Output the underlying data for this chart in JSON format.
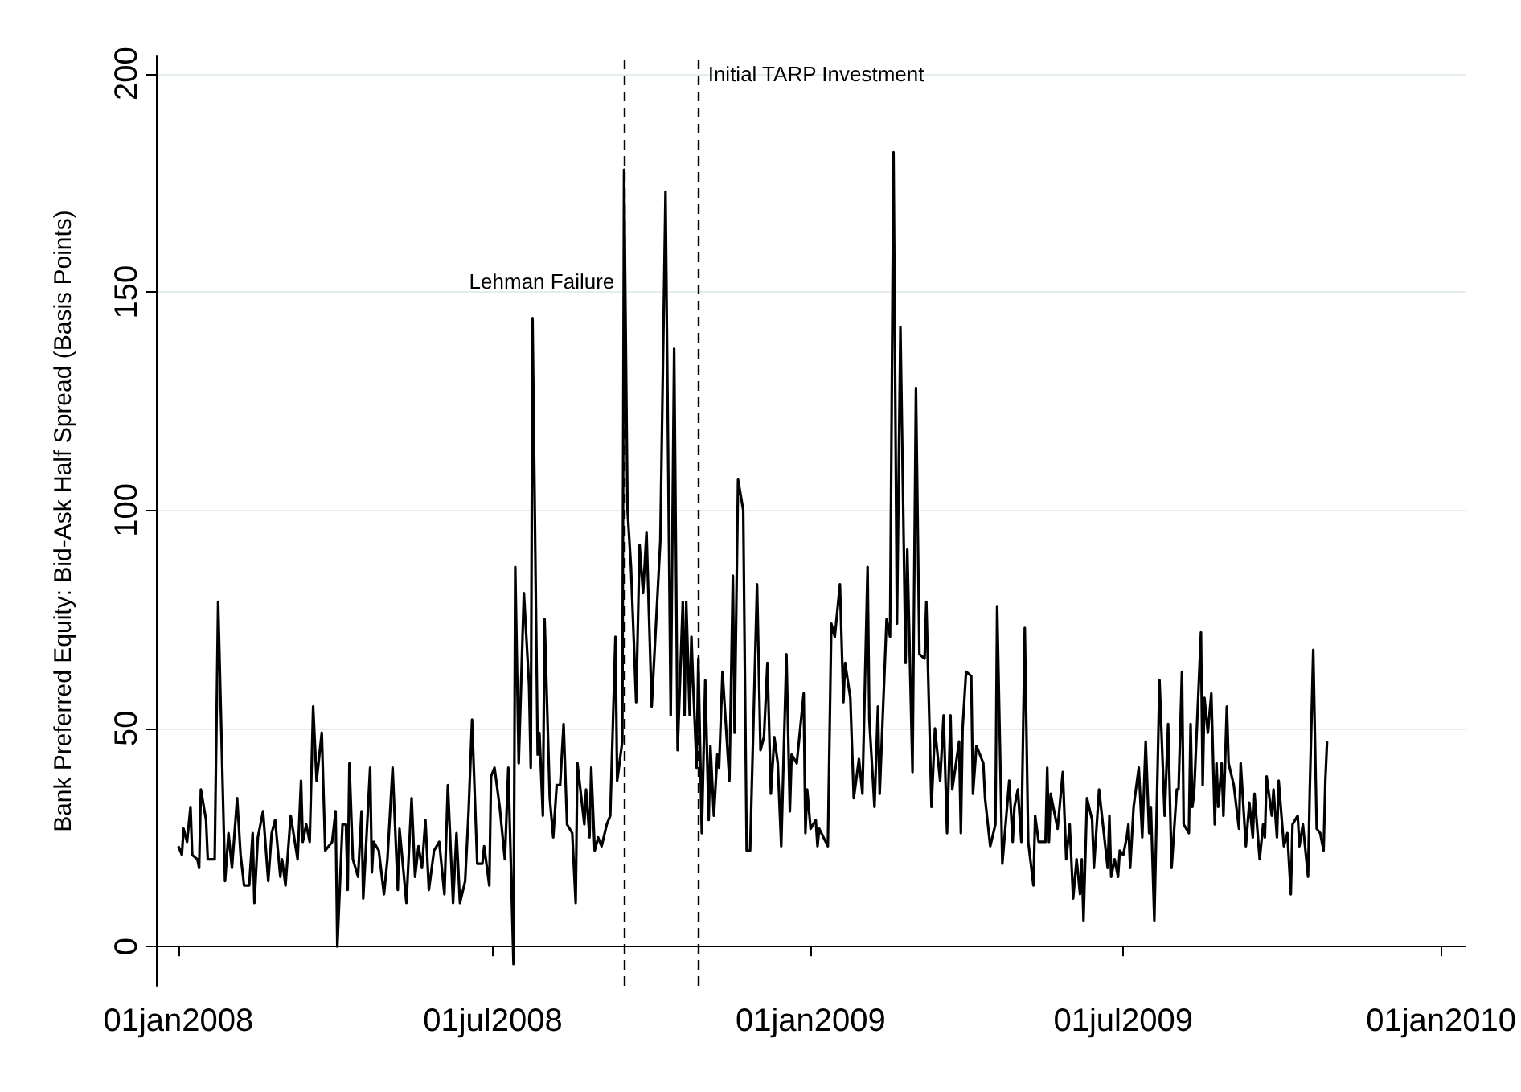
{
  "chart_data": {
    "type": "line",
    "ylabel": "Bank Preferred Equity: Bid-Ask Half Spread (Basis Points)",
    "xlim": [
      "2007-12-19",
      "2010-01-15"
    ],
    "xticks": [
      {
        "value": "2008-01-01",
        "label": "01jan2008"
      },
      {
        "value": "2008-07-01",
        "label": "01jul2008"
      },
      {
        "value": "2009-01-01",
        "label": "01jan2009"
      },
      {
        "value": "2009-07-01",
        "label": "01jul2009"
      },
      {
        "value": "2010-01-01",
        "label": "01jan2010"
      }
    ],
    "ylim": [
      -9,
      204
    ],
    "yticks": [
      0,
      50,
      100,
      150,
      200
    ],
    "grid": "y",
    "marker": "none",
    "line_style": "solid",
    "ref_lines": [
      {
        "axis": "x",
        "value": "2008-09-15",
        "color": "#000000",
        "line_style": "dashed"
      },
      {
        "axis": "x",
        "value": "2008-10-28",
        "color": "#000000",
        "line_style": "dashed"
      }
    ],
    "annotations": [
      {
        "text": "Lehman Failure",
        "x": "2008-09-15",
        "y": 150
      },
      {
        "text": "Initial TARP Investment",
        "x": "2008-10-28",
        "y": 200
      }
    ],
    "x": [
      "2008-01-01",
      "2008-01-03",
      "2008-01-04",
      "2008-01-06",
      "2008-01-08",
      "2008-01-09",
      "2008-01-12",
      "2008-01-13",
      "2008-01-14",
      "2008-01-17",
      "2008-01-18",
      "2008-01-22",
      "2008-01-24",
      "2008-01-28",
      "2008-01-30",
      "2008-02-01",
      "2008-02-04",
      "2008-02-06",
      "2008-02-08",
      "2008-02-11",
      "2008-02-13",
      "2008-02-14",
      "2008-02-16",
      "2008-02-19",
      "2008-02-22",
      "2008-02-24",
      "2008-02-26",
      "2008-02-29",
      "2008-03-01",
      "2008-03-03",
      "2008-03-06",
      "2008-03-10",
      "2008-03-12",
      "2008-03-13",
      "2008-03-15",
      "2008-03-17",
      "2008-03-19",
      "2008-03-21",
      "2008-03-24",
      "2008-03-26",
      "2008-03-30",
      "2008-04-01",
      "2008-04-02",
      "2008-04-05",
      "2008-04-07",
      "2008-04-08",
      "2008-04-09",
      "2008-04-11",
      "2008-04-14",
      "2008-04-16",
      "2008-04-17",
      "2008-04-21",
      "2008-04-22",
      "2008-04-23",
      "2008-04-26",
      "2008-04-29",
      "2008-05-01",
      "2008-05-04",
      "2008-05-07",
      "2008-05-08",
      "2008-05-12",
      "2008-05-15",
      "2008-05-17",
      "2008-05-19",
      "2008-05-21",
      "2008-05-23",
      "2008-05-25",
      "2008-05-28",
      "2008-05-31",
      "2008-06-03",
      "2008-06-05",
      "2008-06-08",
      "2008-06-10",
      "2008-06-12",
      "2008-06-15",
      "2008-06-17",
      "2008-06-19",
      "2008-06-22",
      "2008-06-25",
      "2008-06-26",
      "2008-06-29",
      "2008-06-30",
      "2008-07-02",
      "2008-07-05",
      "2008-07-08",
      "2008-07-10",
      "2008-07-13",
      "2008-07-14",
      "2008-07-16",
      "2008-07-19",
      "2008-07-22",
      "2008-07-23",
      "2008-07-24",
      "2008-07-27",
      "2008-07-28",
      "2008-07-30",
      "2008-07-31",
      "2008-08-03",
      "2008-08-05",
      "2008-08-07",
      "2008-08-09",
      "2008-08-11",
      "2008-08-13",
      "2008-08-16",
      "2008-08-18",
      "2008-08-19",
      "2008-08-23",
      "2008-08-24",
      "2008-08-26",
      "2008-08-27",
      "2008-08-29",
      "2008-08-31",
      "2008-09-02",
      "2008-09-05",
      "2008-09-07",
      "2008-09-10",
      "2008-09-11",
      "2008-09-14",
      "2008-09-15",
      "2008-09-17",
      "2008-09-19",
      "2008-09-22",
      "2008-09-24",
      "2008-09-26",
      "2008-09-28",
      "2008-10-01",
      "2008-10-06",
      "2008-10-09",
      "2008-10-12",
      "2008-10-14",
      "2008-10-16",
      "2008-10-19",
      "2008-10-20",
      "2008-10-21",
      "2008-10-23",
      "2008-10-24",
      "2008-10-25",
      "2008-10-27",
      "2008-10-28",
      "2008-10-30",
      "2008-11-01",
      "2008-11-03",
      "2008-11-04",
      "2008-11-06",
      "2008-11-08",
      "2008-11-09",
      "2008-11-11",
      "2008-11-15",
      "2008-11-17",
      "2008-11-18",
      "2008-11-20",
      "2008-11-23",
      "2008-11-25",
      "2008-11-27",
      "2008-12-01",
      "2008-12-03",
      "2008-12-05",
      "2008-12-07",
      "2008-12-09",
      "2008-12-11",
      "2008-12-13",
      "2008-12-15",
      "2008-12-18",
      "2008-12-20",
      "2008-12-21",
      "2008-12-24",
      "2008-12-28",
      "2008-12-29",
      "2008-12-30",
      "2009-01-01",
      "2009-01-04",
      "2009-01-05",
      "2009-01-06",
      "2009-01-11",
      "2009-01-13",
      "2009-01-15",
      "2009-01-18",
      "2009-01-20",
      "2009-01-21",
      "2009-01-24",
      "2009-01-26",
      "2009-01-29",
      "2009-01-31",
      "2009-02-03",
      "2009-02-04",
      "2009-02-07",
      "2009-02-09",
      "2009-02-10",
      "2009-02-14",
      "2009-02-16",
      "2009-02-18",
      "2009-02-20",
      "2009-02-22",
      "2009-02-25",
      "2009-02-26",
      "2009-03-01",
      "2009-03-03",
      "2009-03-05",
      "2009-03-08",
      "2009-03-09",
      "2009-03-12",
      "2009-03-14",
      "2009-03-17",
      "2009-03-19",
      "2009-03-21",
      "2009-03-23",
      "2009-03-24",
      "2009-03-28",
      "2009-03-29",
      "2009-03-30",
      "2009-04-01",
      "2009-04-04",
      "2009-04-05",
      "2009-04-07",
      "2009-04-11",
      "2009-04-12",
      "2009-04-15",
      "2009-04-18",
      "2009-04-19",
      "2009-04-22",
      "2009-04-26",
      "2009-04-28",
      "2009-04-29",
      "2009-05-01",
      "2009-05-03",
      "2009-05-05",
      "2009-05-07",
      "2009-05-10",
      "2009-05-11",
      "2009-05-13",
      "2009-05-17",
      "2009-05-18",
      "2009-05-19",
      "2009-05-20",
      "2009-05-24",
      "2009-05-27",
      "2009-05-29",
      "2009-05-31",
      "2009-06-02",
      "2009-06-04",
      "2009-06-06",
      "2009-06-07",
      "2009-06-08",
      "2009-06-10",
      "2009-06-13",
      "2009-06-14",
      "2009-06-17",
      "2009-06-22",
      "2009-06-23",
      "2009-06-24",
      "2009-06-26",
      "2009-06-28",
      "2009-06-29",
      "2009-07-01",
      "2009-07-03",
      "2009-07-04",
      "2009-07-05",
      "2009-07-07",
      "2009-07-10",
      "2009-07-12",
      "2009-07-14",
      "2009-07-16",
      "2009-07-17",
      "2009-07-19",
      "2009-07-22",
      "2009-07-25",
      "2009-07-27",
      "2009-07-29",
      "2009-08-01",
      "2009-08-02",
      "2009-08-04",
      "2009-08-05",
      "2009-08-08",
      "2009-08-09",
      "2009-08-10",
      "2009-08-11",
      "2009-08-15",
      "2009-08-16",
      "2009-08-17",
      "2009-08-19",
      "2009-08-21",
      "2009-08-23",
      "2009-08-24",
      "2009-08-25",
      "2009-08-27",
      "2009-08-28",
      "2009-08-30",
      "2009-08-31",
      "2009-09-03",
      "2009-09-06",
      "2009-09-07",
      "2009-09-10",
      "2009-09-12",
      "2009-09-14",
      "2009-09-15",
      "2009-09-18",
      "2009-09-20",
      "2009-09-21",
      "2009-09-22",
      "2009-09-25",
      "2009-09-26",
      "2009-09-28",
      "2009-09-29",
      "2009-10-02",
      "2009-10-04",
      "2009-10-06",
      "2009-10-07",
      "2009-10-10",
      "2009-10-11",
      "2009-10-13",
      "2009-10-16",
      "2009-10-17",
      "2009-10-19",
      "2009-10-21",
      "2009-10-23",
      "2009-10-25",
      "2009-10-26",
      "2009-10-27"
    ],
    "series": [
      {
        "color": "#000000",
        "values": [
          23,
          21,
          27,
          24,
          32,
          21,
          20,
          18,
          36,
          29,
          20,
          20,
          79,
          15,
          26,
          18,
          34,
          21,
          14,
          14,
          26,
          10,
          25,
          31,
          15,
          26,
          29,
          16,
          20,
          14,
          30,
          20,
          38,
          24,
          28,
          24,
          55,
          38,
          49,
          22,
          24,
          31,
          0,
          28,
          28,
          13,
          42,
          20,
          16,
          31,
          11,
          41,
          17,
          24,
          22,
          12,
          20,
          41,
          13,
          27,
          10,
          34,
          16,
          23,
          18,
          29,
          13,
          22,
          24,
          12,
          37,
          10,
          26,
          10,
          15,
          31,
          52,
          19,
          19,
          23,
          14,
          39,
          41,
          32,
          20,
          41,
          -4,
          87,
          42,
          81,
          60,
          41,
          144,
          44,
          49,
          30,
          75,
          34,
          25,
          37,
          37,
          51,
          28,
          26,
          10,
          42,
          28,
          36,
          25,
          41,
          22,
          25,
          23,
          28,
          30,
          71,
          38,
          47,
          178,
          100,
          87,
          56,
          92,
          81,
          95,
          55,
          93,
          173,
          53,
          137,
          45,
          79,
          53,
          79,
          53,
          71,
          60,
          41,
          66,
          26,
          61,
          29,
          46,
          30,
          44,
          41,
          63,
          38,
          85,
          49,
          107,
          100,
          22,
          22,
          83,
          45,
          48,
          65,
          35,
          48,
          42,
          23,
          67,
          31,
          44,
          42,
          58,
          26,
          36,
          27,
          29,
          23,
          27,
          23,
          74,
          71,
          83,
          56,
          65,
          57,
          34,
          43,
          35,
          87,
          52,
          32,
          55,
          35,
          75,
          71,
          182,
          74,
          142,
          65,
          91,
          40,
          128,
          67,
          66,
          79,
          32,
          50,
          38,
          53,
          26,
          53,
          36,
          47,
          26,
          50,
          63,
          62,
          35,
          46,
          42,
          34,
          23,
          28,
          78,
          19,
          38,
          24,
          32,
          36,
          24,
          73,
          24,
          14,
          30,
          24,
          24,
          41,
          24,
          35,
          27,
          40,
          20,
          28,
          11,
          20,
          12,
          20,
          6,
          34,
          29,
          18,
          36,
          18,
          30,
          16,
          20,
          16,
          22,
          21,
          25,
          28,
          18,
          32,
          41,
          25,
          47,
          26,
          32,
          6,
          61,
          30,
          51,
          18,
          36,
          36,
          63,
          28,
          26,
          51,
          32,
          35,
          72,
          37,
          57,
          49,
          58,
          28,
          42,
          32,
          42,
          30,
          55,
          42,
          37,
          27,
          42,
          23,
          33,
          25,
          35,
          20,
          28,
          25,
          39,
          30,
          36,
          25,
          38,
          23,
          26,
          12,
          28,
          30,
          23,
          28,
          16,
          36,
          68,
          27,
          26,
          22,
          38,
          47
        ]
      }
    ]
  }
}
